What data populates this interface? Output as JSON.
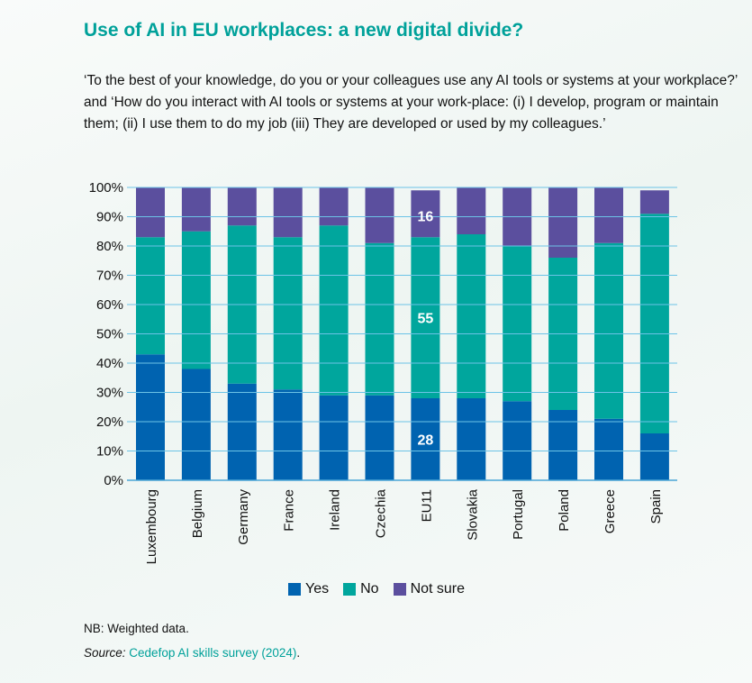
{
  "title": "Use of AI in EU workplaces: a new digital divide?",
  "subtitle": "‘To the best of your knowledge, do you or your colleagues use any AI tools or systems at your workplace?’ and ‘How do you interact with AI tools or systems at your work-place: (i) I develop, program or maintain them; (ii) I use them to do my job (iii) They are developed or used by my colleagues.’",
  "note": "NB:  Weighted data.",
  "source_label": "Source:",
  "source_text": "Cedefop AI skills survey (2024)",
  "source_end": ".",
  "chart_data": {
    "type": "bar",
    "stacked": true,
    "categories": [
      "Luxembourg",
      "Belgium",
      "Germany",
      "France",
      "Ireland",
      "Czechia",
      "EU11",
      "Slovakia",
      "Portugal",
      "Poland",
      "Greece",
      "Spain"
    ],
    "series": [
      {
        "name": "Yes",
        "color": "#0063b0",
        "values": [
          43,
          38,
          33,
          31,
          29,
          29,
          28,
          28,
          27,
          24,
          21,
          16
        ]
      },
      {
        "name": "No",
        "color": "#00a69d",
        "values": [
          40,
          47,
          54,
          52,
          58,
          52,
          55,
          56,
          53,
          52,
          60,
          75
        ]
      },
      {
        "name": "Not sure",
        "color": "#5b4f9e",
        "values": [
          17,
          15,
          13,
          17,
          13,
          19,
          16,
          16,
          20,
          24,
          19,
          8
        ]
      }
    ],
    "data_labels": [
      {
        "category": "EU11",
        "series": "Yes",
        "text": "28"
      },
      {
        "category": "EU11",
        "series": "No",
        "text": "55"
      },
      {
        "category": "EU11",
        "series": "Not sure",
        "text": "16"
      }
    ],
    "ylim": [
      0,
      100
    ],
    "yticks": [
      "0%",
      "10%",
      "20%",
      "30%",
      "40%",
      "50%",
      "60%",
      "70%",
      "80%",
      "90%",
      "100%"
    ],
    "grid": true,
    "legend_position": "bottom"
  }
}
